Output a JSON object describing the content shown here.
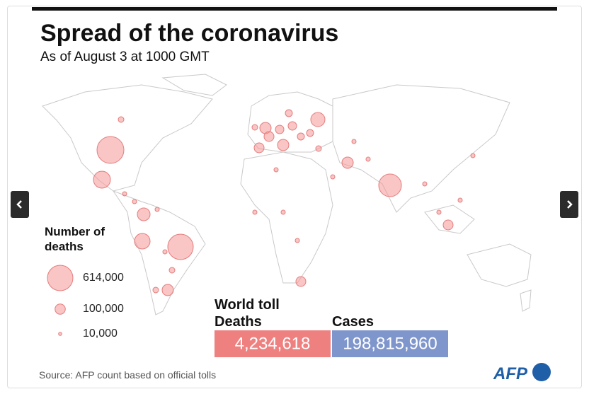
{
  "header": {
    "title": "Spread of the coronavirus",
    "subtitle": "As of August 3 at 1000 GMT"
  },
  "legend": {
    "title": "Number of deaths",
    "sizes": [
      {
        "value": 614000,
        "label": "614,000"
      },
      {
        "value": 100000,
        "label": "100,000"
      },
      {
        "value": 10000,
        "label": "10,000"
      }
    ]
  },
  "world_toll": {
    "title": "World toll",
    "deaths": {
      "label": "Deaths",
      "value": 4234618,
      "value_label": "4,234,618"
    },
    "cases": {
      "label": "Cases",
      "value": 198815960,
      "value_label": "198,815,960"
    }
  },
  "source": "Source: AFP count based on official tolls",
  "logo": "AFP"
}
